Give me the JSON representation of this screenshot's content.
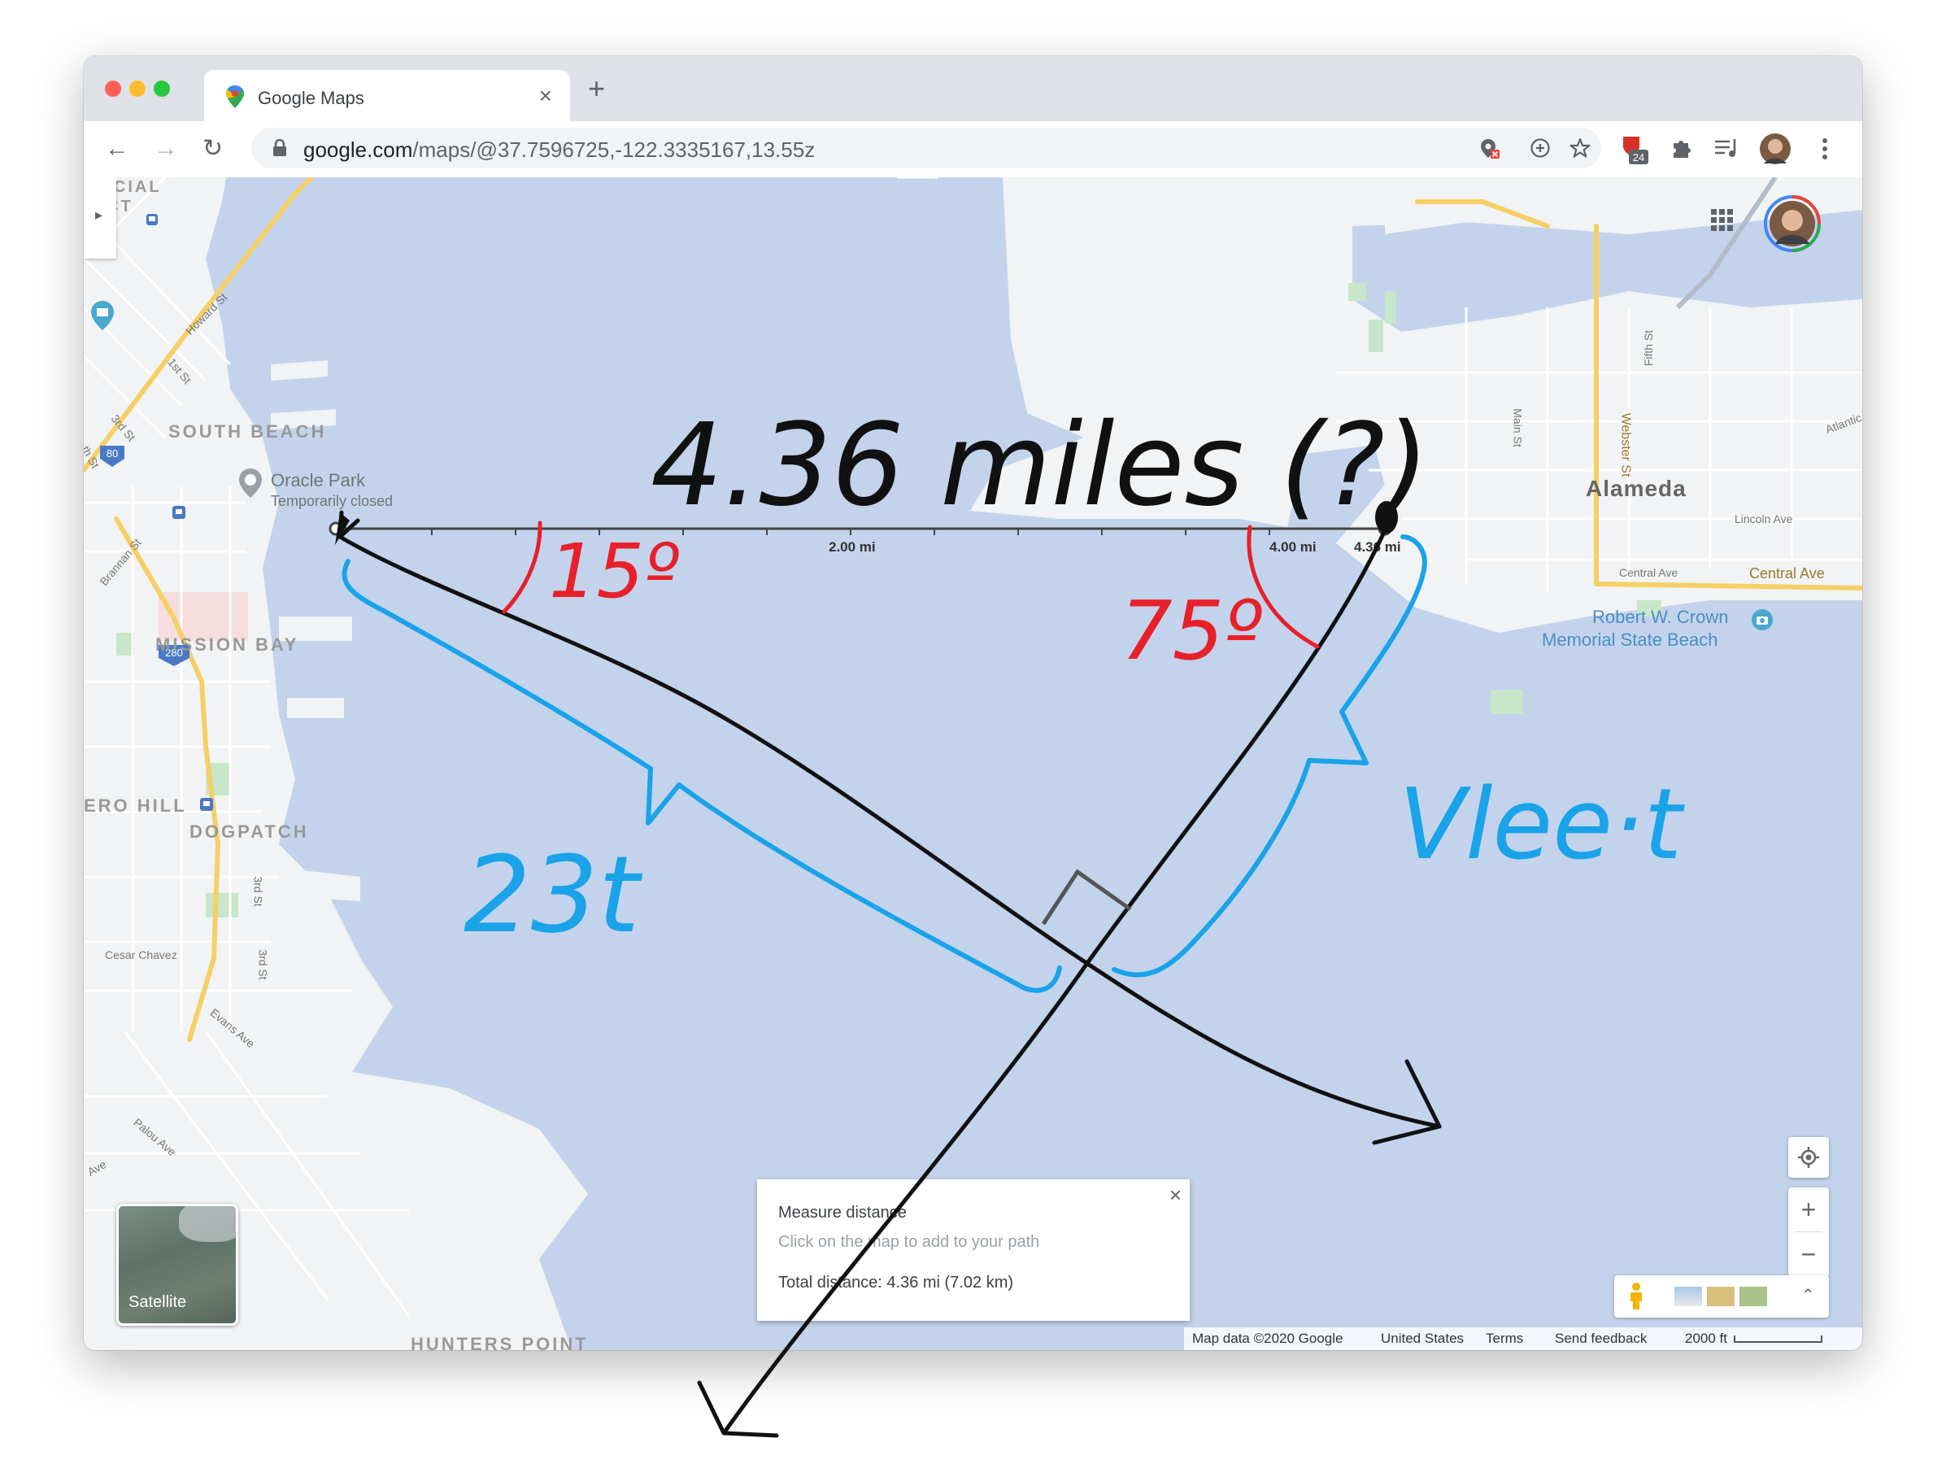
{
  "browser": {
    "tab_title": "Google Maps",
    "new_tab_symbol": "+",
    "url_domain": "google.com",
    "url_path": "/maps/@37.7596725,-122.3335167,13.55z",
    "extension_badge": "24",
    "icons": [
      "back-arrow-icon",
      "forward-arrow-icon",
      "reload-icon",
      "lock-icon",
      "location-blocked-icon",
      "add-icon",
      "star-icon",
      "extension-shield-icon",
      "puzzle-icon",
      "playlist-icon",
      "profile-avatar-icon",
      "menu-dots-icon"
    ]
  },
  "map": {
    "labels": {
      "financial_district": "ANCIAL\nRICT",
      "south_beach": "SOUTH BEACH",
      "mission_bay": "MISSION BAY",
      "potrero_hill": "ERO HILL",
      "dogpatch": "DOGPATCH",
      "hunters_point": "HUNTERS POINT",
      "alameda": "Alameda"
    },
    "streets": {
      "howard": "Howard St",
      "first": "1st St",
      "third_a": "3rd St",
      "fourth": "th St",
      "brannan": "Brannan St",
      "third_b": "3rd St",
      "third_c": "3rd St",
      "cesar_chavez": "Cesar Chavez",
      "evans": "Evans Ave",
      "palou": "Palou Ave",
      "ave": "Ave",
      "fifth": "Fifth St",
      "main": "Main St",
      "webster": "Webster St",
      "atlantic": "Atlantic Ave",
      "lincoln": "Lincoln Ave",
      "central_small": "Central Ave",
      "central": "Central Ave"
    },
    "highways": [
      "80",
      "280"
    ],
    "pois": {
      "oracle_park": "Oracle Park",
      "oracle_status": "Temporarily closed",
      "crown_beach_1": "Robert W. Crown",
      "crown_beach_2": "Memorial State Beach"
    },
    "scale_ticks": {
      "tick_2": "2.00 mi",
      "tick_4": "4.00 mi",
      "tick_end": "4.36 mi"
    },
    "measure_panel": {
      "title": "Measure distance",
      "hint": "Click on the map to add to your path",
      "total": "Total distance: 4.36 mi (7.02 km)",
      "close": "×"
    },
    "satellite_label": "Satellite",
    "zoom_in": "+",
    "zoom_out": "−",
    "footer": {
      "map_data": "Map data ©2020 Google",
      "country": "United States",
      "terms": "Terms",
      "feedback": "Send feedback",
      "scale": "2000 ft"
    }
  },
  "annotations": {
    "headline": "4.36 miles (?)",
    "angle_left": "15º",
    "angle_right": "75º",
    "left_leg": "23t",
    "right_leg": "Vlee·t"
  },
  "colors": {
    "water": "#c3d3ec",
    "land": "#f1f3f4",
    "ink_black": "#111111",
    "ink_red": "#e8202a",
    "ink_blue": "#1aa3e8",
    "highway": "#f6cf65"
  }
}
